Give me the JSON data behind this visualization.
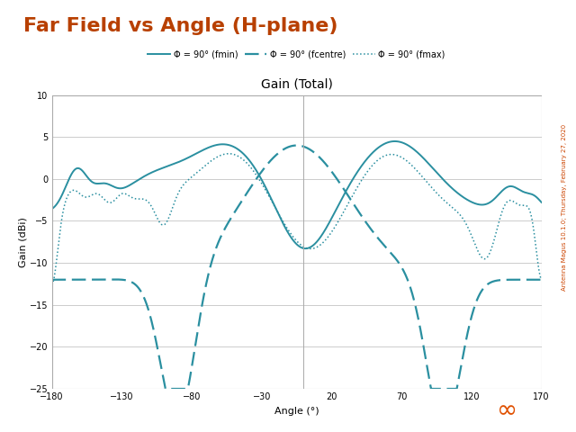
{
  "title": "Gain (Total)",
  "xlabel": "Angle (°)",
  "ylabel": "Gain (dBi)",
  "xlim": [
    -180,
    170
  ],
  "ylim": [
    -25,
    10
  ],
  "xticks": [
    -180,
    -130,
    -80,
    -30,
    20,
    70,
    120,
    170
  ],
  "yticks": [
    -25,
    -20,
    -15,
    -10,
    -5,
    0,
    5,
    10
  ],
  "main_title": "Far Field vs Angle (H-plane)",
  "main_title_color": "#b84000",
  "legend": [
    "Φ = 90° (fmin)",
    "Φ = 90° (fcentre)",
    "Φ = 90° (fmax)"
  ],
  "line_color": "#2a8fa0",
  "bg_color": "#ffffff",
  "watermark_color": "#cc4400",
  "watermark_text": "Antenna Magus 10.1.0; Thursday, February 27, 2020",
  "grid_color": "#cccccc",
  "spine_color": "#aaaaaa"
}
